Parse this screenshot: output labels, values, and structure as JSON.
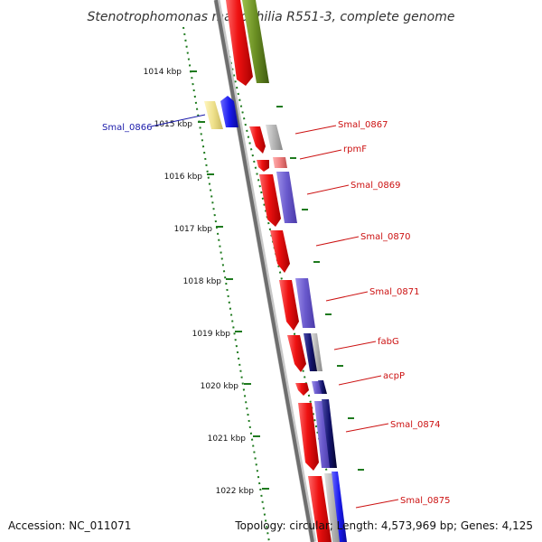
{
  "title": "Stenotrophomonas maltophilia R551-3, complete genome",
  "footer": {
    "accession": "Accession: NC_011071",
    "topology": "Topology: circular; Length: 4,573,969 bp; Genes: 4,125"
  },
  "ticks": [
    "1014 kbp",
    "1015 kbp",
    "1016 kbp",
    "1017 kbp",
    "1018 kbp",
    "1019 kbp",
    "1020 kbp",
    "1021 kbp",
    "1022 kbp"
  ],
  "gene_labels": [
    {
      "text": "Smal_0866",
      "color": "#1a1aaa"
    },
    {
      "text": "Smal_0867",
      "color": "#cc1111"
    },
    {
      "text": "rpmF",
      "color": "#cc1111"
    },
    {
      "text": "Smal_0869",
      "color": "#cc1111"
    },
    {
      "text": "Smal_0870",
      "color": "#cc1111"
    },
    {
      "text": "Smal_0871",
      "color": "#cc1111"
    },
    {
      "text": "fabG",
      "color": "#cc1111"
    },
    {
      "text": "acpP",
      "color": "#cc1111"
    },
    {
      "text": "Smal_0874",
      "color": "#cc1111"
    },
    {
      "text": "Smal_0875",
      "color": "#cc1111"
    }
  ],
  "colors": {
    "forward_cds": "#ee1111",
    "olive": "#6a8e23",
    "blue": "#1a1aee",
    "purple": "#6a5acd",
    "navy": "#14146e",
    "gray": "#b4b4b4",
    "pale_yellow": "#eee08a",
    "tick_green": "#1e7a1e",
    "backbone": "#7a7a7a"
  }
}
